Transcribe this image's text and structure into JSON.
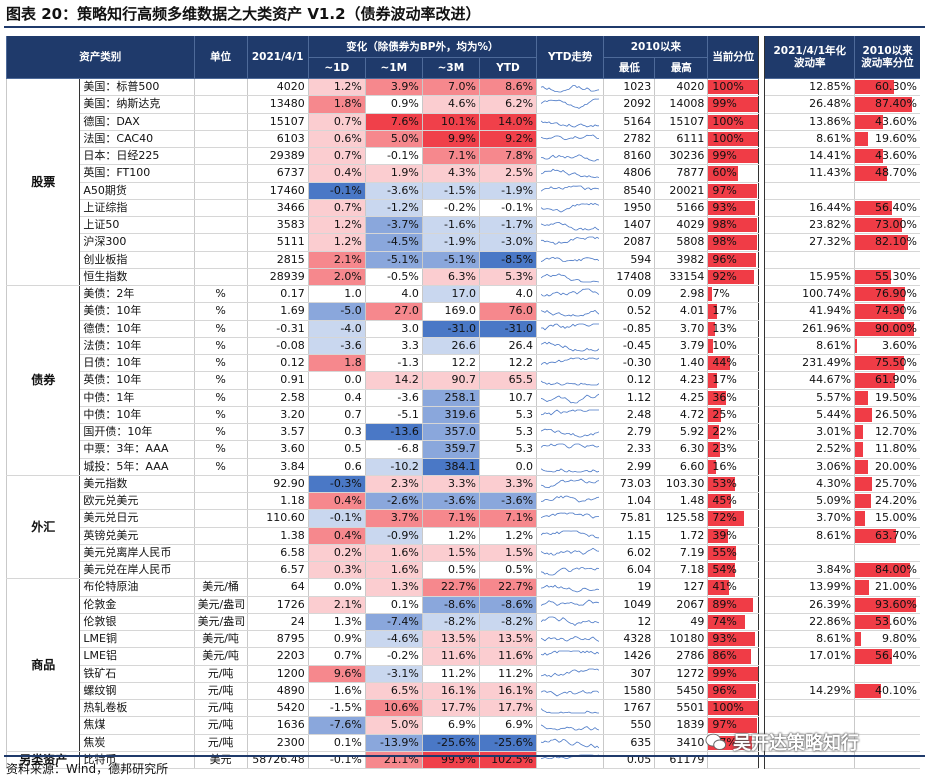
{
  "title": "图表 20：策略知行高频多维数据之大类资产 V1.2（债券波动率改进）",
  "footer": "资料来源：Wind，德邦研究所",
  "watermark": "吴开达策略知行",
  "colors": {
    "header_bg": "#1f3a6b",
    "red_strong": "#f0404a",
    "blue_strong": "#3f6fc0"
  },
  "header": {
    "asset_class": "资产类别",
    "unit": "单位",
    "date": "2021/4/1",
    "change_group": "变化（除债券为BP外，均为%）",
    "d1": "~1D",
    "m1": "~1M",
    "m3": "~3M",
    "ytd": "YTD",
    "trend": "YTD走势",
    "since2010": "2010以来",
    "low": "最低",
    "high": "最高",
    "percentile": "当前分位",
    "vol": "2021/4/1年化波动率",
    "vol_pct": "2010以来波动率分位"
  },
  "groups": [
    {
      "name": "股票",
      "rows": [
        {
          "name": "美国：标普500",
          "unit": "",
          "v": "4020",
          "d1": "1.2%",
          "m1": "3.9%",
          "m3": "7.0%",
          "ytd": "8.6%",
          "low": "1023",
          "high": "4020",
          "pct": "100%",
          "vol": "12.85%",
          "vp": "60.30%",
          "c": [
            1,
            2,
            2,
            2
          ],
          "p": 100,
          "vpn": 60.3
        },
        {
          "name": "美国：纳斯达克",
          "unit": "",
          "v": "13480",
          "d1": "1.8%",
          "m1": "0.9%",
          "m3": "4.6%",
          "ytd": "6.2%",
          "low": "2092",
          "high": "14008",
          "pct": "99%",
          "vol": "26.48%",
          "vp": "87.40%",
          "c": [
            2,
            0,
            1,
            1
          ],
          "p": 99,
          "vpn": 87.4
        },
        {
          "name": "德国：DAX",
          "unit": "",
          "v": "15107",
          "d1": "0.7%",
          "m1": "7.6%",
          "m3": "10.1%",
          "ytd": "14.0%",
          "low": "5164",
          "high": "15107",
          "pct": "100%",
          "vol": "13.86%",
          "vp": "43.60%",
          "c": [
            1,
            3,
            3,
            3
          ],
          "p": 100,
          "vpn": 43.6
        },
        {
          "name": "法国：CAC40",
          "unit": "",
          "v": "6103",
          "d1": "0.6%",
          "m1": "5.0%",
          "m3": "9.9%",
          "ytd": "9.2%",
          "low": "2782",
          "high": "6111",
          "pct": "100%",
          "vol": "8.61%",
          "vp": "19.60%",
          "c": [
            1,
            2,
            3,
            3
          ],
          "p": 100,
          "vpn": 19.6
        },
        {
          "name": "日本：日经225",
          "unit": "",
          "v": "29389",
          "d1": "0.7%",
          "m1": "-0.1%",
          "m3": "7.1%",
          "ytd": "7.8%",
          "low": "8160",
          "high": "30236",
          "pct": "99%",
          "vol": "14.41%",
          "vp": "43.60%",
          "c": [
            1,
            0,
            2,
            2
          ],
          "p": 99,
          "vpn": 43.6
        },
        {
          "name": "英国：FT100",
          "unit": "",
          "v": "6737",
          "d1": "0.4%",
          "m1": "1.9%",
          "m3": "4.3%",
          "ytd": "2.5%",
          "low": "4806",
          "high": "7877",
          "pct": "60%",
          "vol": "11.43%",
          "vp": "48.70%",
          "c": [
            1,
            1,
            1,
            1
          ],
          "p": 60,
          "vpn": 48.7
        },
        {
          "name": "A50期货",
          "unit": "",
          "v": "17460",
          "d1": "-0.1%",
          "m1": "-3.6%",
          "m3": "-1.5%",
          "ytd": "-1.9%",
          "low": "8540",
          "high": "20021",
          "pct": "97%",
          "vol": "",
          "vp": "",
          "c": [
            -3,
            -1,
            -1,
            -1
          ],
          "p": 97,
          "vpn": 0
        },
        {
          "name": "上证综指",
          "unit": "",
          "v": "3466",
          "d1": "0.7%",
          "m1": "-1.2%",
          "m3": "-0.2%",
          "ytd": "-0.1%",
          "low": "1950",
          "high": "5166",
          "pct": "93%",
          "vol": "16.44%",
          "vp": "56.40%",
          "c": [
            1,
            -1,
            0,
            0
          ],
          "p": 93,
          "vpn": 56.4
        },
        {
          "name": "上证50",
          "unit": "",
          "v": "3583",
          "d1": "1.2%",
          "m1": "-3.7%",
          "m3": "-1.6%",
          "ytd": "-1.7%",
          "low": "1407",
          "high": "4029",
          "pct": "98%",
          "vol": "23.82%",
          "vp": "73.00%",
          "c": [
            1,
            -2,
            -1,
            -1
          ],
          "p": 98,
          "vpn": 73.0
        },
        {
          "name": "沪深300",
          "unit": "",
          "v": "5111",
          "d1": "1.2%",
          "m1": "-4.5%",
          "m3": "-1.9%",
          "ytd": "-3.0%",
          "low": "2087",
          "high": "5808",
          "pct": "98%",
          "vol": "27.32%",
          "vp": "82.10%",
          "c": [
            1,
            -2,
            -1,
            -1
          ],
          "p": 98,
          "vpn": 82.1
        },
        {
          "name": "创业板指",
          "unit": "",
          "v": "2815",
          "d1": "2.1%",
          "m1": "-5.1%",
          "m3": "-5.1%",
          "ytd": "-8.5%",
          "low": "594",
          "high": "3982",
          "pct": "96%",
          "vol": "",
          "vp": "",
          "c": [
            2,
            -2,
            -2,
            -3
          ],
          "p": 96,
          "vpn": 0
        },
        {
          "name": "恒生指数",
          "unit": "",
          "v": "28939",
          "d1": "2.0%",
          "m1": "-0.5%",
          "m3": "6.3%",
          "ytd": "5.3%",
          "low": "17408",
          "high": "33154",
          "pct": "92%",
          "vol": "15.95%",
          "vp": "55.30%",
          "c": [
            2,
            0,
            1,
            1
          ],
          "p": 92,
          "vpn": 55.3
        }
      ]
    },
    {
      "name": "债券",
      "rows": [
        {
          "name": "美债：2年",
          "unit": "%",
          "v": "0.17",
          "d1": "1.0",
          "m1": "4.0",
          "m3": "17.0",
          "ytd": "4.0",
          "low": "0.09",
          "high": "2.98",
          "pct": "7%",
          "vol": "100.74%",
          "vp": "76.90%",
          "c": [
            0,
            0,
            -1,
            0
          ],
          "p": 7,
          "vpn": 76.9
        },
        {
          "name": "美债：10年",
          "unit": "%",
          "v": "1.69",
          "d1": "-5.0",
          "m1": "27.0",
          "m3": "169.0",
          "ytd": "76.0",
          "low": "0.52",
          "high": "4.01",
          "pct": "17%",
          "vol": "41.94%",
          "vp": "74.90%",
          "c": [
            -2,
            2,
            0,
            2
          ],
          "p": 17,
          "vpn": 74.9
        },
        {
          "name": "德债：10年",
          "unit": "%",
          "v": "-0.31",
          "d1": "-4.0",
          "m1": "3.0",
          "m3": "-31.0",
          "ytd": "-31.0",
          "low": "-0.85",
          "high": "3.70",
          "pct": "13%",
          "vol": "261.96%",
          "vp": "90.00%",
          "c": [
            -1,
            0,
            -3,
            -3
          ],
          "p": 13,
          "vpn": 90.0
        },
        {
          "name": "法债：10年",
          "unit": "%",
          "v": "-0.08",
          "d1": "-3.6",
          "m1": "3.3",
          "m3": "26.6",
          "ytd": "26.4",
          "low": "-0.45",
          "high": "3.79",
          "pct": "10%",
          "vol": "8.61%",
          "vp": "3.60%",
          "c": [
            -1,
            0,
            -1,
            0
          ],
          "p": 10,
          "vpn": 3.6
        },
        {
          "name": "日债：10年",
          "unit": "%",
          "v": "0.12",
          "d1": "1.8",
          "m1": "-1.3",
          "m3": "12.2",
          "ytd": "12.2",
          "low": "-0.30",
          "high": "1.40",
          "pct": "44%",
          "vol": "231.49%",
          "vp": "75.50%",
          "c": [
            2,
            0,
            0,
            0
          ],
          "p": 44,
          "vpn": 75.5
        },
        {
          "name": "英债：10年",
          "unit": "%",
          "v": "0.91",
          "d1": "0.0",
          "m1": "14.2",
          "m3": "90.7",
          "ytd": "65.5",
          "low": "0.12",
          "high": "4.23",
          "pct": "17%",
          "vol": "44.67%",
          "vp": "61.90%",
          "c": [
            0,
            1,
            1,
            1
          ],
          "p": 17,
          "vpn": 61.9
        },
        {
          "name": "中债：1年",
          "unit": "%",
          "v": "2.58",
          "d1": "0.4",
          "m1": "-3.6",
          "m3": "258.1",
          "ytd": "10.7",
          "low": "1.12",
          "high": "4.25",
          "pct": "36%",
          "vol": "5.57%",
          "vp": "19.50%",
          "c": [
            0,
            0,
            -2,
            0
          ],
          "p": 36,
          "vpn": 19.5
        },
        {
          "name": "中债：10年",
          "unit": "%",
          "v": "3.20",
          "d1": "0.7",
          "m1": "-5.1",
          "m3": "319.6",
          "ytd": "5.3",
          "low": "2.48",
          "high": "4.72",
          "pct": "25%",
          "vol": "5.44%",
          "vp": "26.50%",
          "c": [
            0,
            0,
            -2,
            0
          ],
          "p": 25,
          "vpn": 26.5
        },
        {
          "name": "国开债：10年",
          "unit": "%",
          "v": "3.57",
          "d1": "0.3",
          "m1": "-13.6",
          "m3": "357.0",
          "ytd": "5.3",
          "low": "2.79",
          "high": "5.92",
          "pct": "22%",
          "vol": "3.01%",
          "vp": "12.70%",
          "c": [
            0,
            -3,
            -2,
            0
          ],
          "p": 22,
          "vpn": 12.7
        },
        {
          "name": "中票：3年：AAA",
          "unit": "%",
          "v": "3.60",
          "d1": "0.5",
          "m1": "-6.8",
          "m3": "359.7",
          "ytd": "5.3",
          "low": "2.33",
          "high": "6.30",
          "pct": "23%",
          "vol": "2.52%",
          "vp": "11.80%",
          "c": [
            0,
            0,
            -2,
            0
          ],
          "p": 23,
          "vpn": 11.8
        },
        {
          "name": "城投：5年：AAA",
          "unit": "%",
          "v": "3.84",
          "d1": "0.6",
          "m1": "-10.2",
          "m3": "384.1",
          "ytd": "0.0",
          "low": "2.99",
          "high": "6.60",
          "pct": "16%",
          "vol": "3.06%",
          "vp": "20.00%",
          "c": [
            0,
            -1,
            -3,
            0
          ],
          "p": 16,
          "vpn": 20.0
        }
      ]
    },
    {
      "name": "外汇",
      "rows": [
        {
          "name": "美元指数",
          "unit": "",
          "v": "92.90",
          "d1": "-0.3%",
          "m1": "2.3%",
          "m3": "3.3%",
          "ytd": "3.3%",
          "low": "73.03",
          "high": "103.30",
          "pct": "53%",
          "vol": "4.30%",
          "vp": "25.70%",
          "c": [
            -3,
            1,
            1,
            1
          ],
          "p": 53,
          "vpn": 25.7
        },
        {
          "name": "欧元兑美元",
          "unit": "",
          "v": "1.18",
          "d1": "0.4%",
          "m1": "-2.6%",
          "m3": "-3.6%",
          "ytd": "-3.6%",
          "low": "1.04",
          "high": "1.48",
          "pct": "45%",
          "vol": "5.09%",
          "vp": "24.20%",
          "c": [
            2,
            -2,
            -2,
            -2
          ],
          "p": 45,
          "vpn": 24.2
        },
        {
          "name": "美元兑日元",
          "unit": "",
          "v": "110.60",
          "d1": "-0.1%",
          "m1": "3.7%",
          "m3": "7.1%",
          "ytd": "7.1%",
          "low": "75.81",
          "high": "125.58",
          "pct": "72%",
          "vol": "3.70%",
          "vp": "15.00%",
          "c": [
            -1,
            2,
            2,
            2
          ],
          "p": 72,
          "vpn": 15.0
        },
        {
          "name": "英镑兑美元",
          "unit": "",
          "v": "1.38",
          "d1": "0.4%",
          "m1": "-0.9%",
          "m3": "1.2%",
          "ytd": "1.2%",
          "low": "1.15",
          "high": "1.72",
          "pct": "39%",
          "vol": "8.61%",
          "vp": "63.70%",
          "c": [
            2,
            -1,
            0,
            0
          ],
          "p": 39,
          "vpn": 63.7
        },
        {
          "name": "美元兑离岸人民币",
          "unit": "",
          "v": "6.58",
          "d1": "0.2%",
          "m1": "1.6%",
          "m3": "1.5%",
          "ytd": "1.5%",
          "low": "6.02",
          "high": "7.19",
          "pct": "55%",
          "vol": "",
          "vp": "",
          "c": [
            1,
            1,
            1,
            1
          ],
          "p": 55,
          "vpn": 0
        },
        {
          "name": "美元兑在岸人民币",
          "unit": "",
          "v": "6.57",
          "d1": "0.3%",
          "m1": "1.6%",
          "m3": "0.5%",
          "ytd": "0.5%",
          "low": "6.04",
          "high": "7.18",
          "pct": "54%",
          "vol": "3.84%",
          "vp": "84.00%",
          "c": [
            1,
            1,
            0,
            0
          ],
          "p": 54,
          "vpn": 84.0
        }
      ]
    },
    {
      "name": "商品",
      "rows": [
        {
          "name": "布伦特原油",
          "unit": "美元/桶",
          "v": "64",
          "d1": "0.0%",
          "m1": "1.3%",
          "m3": "22.7%",
          "ytd": "22.7%",
          "low": "19",
          "high": "127",
          "pct": "41%",
          "vol": "13.99%",
          "vp": "21.00%",
          "c": [
            0,
            1,
            2,
            2
          ],
          "p": 41,
          "vpn": 21.0
        },
        {
          "name": "伦敦金",
          "unit": "美元/盎司",
          "v": "1726",
          "d1": "2.1%",
          "m1": "0.1%",
          "m3": "-8.6%",
          "ytd": "-8.6%",
          "low": "1049",
          "high": "2067",
          "pct": "89%",
          "vol": "26.39%",
          "vp": "93.60%",
          "c": [
            1,
            0,
            -2,
            -2
          ],
          "p": 89,
          "vpn": 93.6
        },
        {
          "name": "伦敦银",
          "unit": "美元/盎司",
          "v": "24",
          "d1": "1.3%",
          "m1": "-7.4%",
          "m3": "-8.2%",
          "ytd": "-8.2%",
          "low": "12",
          "high": "49",
          "pct": "74%",
          "vol": "22.86%",
          "vp": "53.60%",
          "c": [
            0,
            -2,
            -1,
            -1
          ],
          "p": 74,
          "vpn": 53.6
        },
        {
          "name": "LME铜",
          "unit": "美元/吨",
          "v": "8795",
          "d1": "0.9%",
          "m1": "-4.6%",
          "m3": "13.5%",
          "ytd": "13.5%",
          "low": "4328",
          "high": "10180",
          "pct": "93%",
          "vol": "8.61%",
          "vp": "9.80%",
          "c": [
            0,
            -1,
            1,
            1
          ],
          "p": 93,
          "vpn": 9.8
        },
        {
          "name": "LME铝",
          "unit": "美元/吨",
          "v": "2203",
          "d1": "0.7%",
          "m1": "-0.2%",
          "m3": "11.6%",
          "ytd": "11.6%",
          "low": "1426",
          "high": "2786",
          "pct": "86%",
          "vol": "17.01%",
          "vp": "56.40%",
          "c": [
            0,
            0,
            1,
            1
          ],
          "p": 86,
          "vpn": 56.4
        },
        {
          "name": "铁矿石",
          "unit": "元/吨",
          "v": "1200",
          "d1": "9.6%",
          "m1": "-3.1%",
          "m3": "11.2%",
          "ytd": "11.2%",
          "low": "307",
          "high": "1272",
          "pct": "99%",
          "vol": "",
          "vp": "",
          "c": [
            2,
            -1,
            0,
            0
          ],
          "p": 99,
          "vpn": 0
        },
        {
          "name": "螺纹钢",
          "unit": "元/吨",
          "v": "4890",
          "d1": "1.6%",
          "m1": "6.5%",
          "m3": "16.1%",
          "ytd": "16.1%",
          "low": "1580",
          "high": "5450",
          "pct": "96%",
          "vol": "14.29%",
          "vp": "40.10%",
          "c": [
            0,
            1,
            1,
            1
          ],
          "p": 96,
          "vpn": 40.1
        },
        {
          "name": "热轧卷板",
          "unit": "元/吨",
          "v": "5420",
          "d1": "-1.5%",
          "m1": "10.6%",
          "m3": "17.7%",
          "ytd": "17.7%",
          "low": "1767",
          "high": "5501",
          "pct": "100%",
          "vol": "",
          "vp": "",
          "c": [
            0,
            2,
            1,
            1
          ],
          "p": 100,
          "vpn": 0
        },
        {
          "name": "焦煤",
          "unit": "元/吨",
          "v": "1636",
          "d1": "-7.6%",
          "m1": "5.0%",
          "m3": "6.9%",
          "ytd": "6.9%",
          "low": "550",
          "high": "1839",
          "pct": "97%",
          "vol": "",
          "vp": "",
          "c": [
            -2,
            1,
            0,
            0
          ],
          "p": 97,
          "vpn": 0
        },
        {
          "name": "焦炭",
          "unit": "元/吨",
          "v": "2300",
          "d1": "0.1%",
          "m1": "-13.9%",
          "m3": "-25.6%",
          "ytd": "-25.6%",
          "low": "635",
          "high": "3410",
          "pct": "87%",
          "vol": "",
          "vp": "",
          "c": [
            0,
            -2,
            -3,
            -3
          ],
          "p": 87,
          "vpn": 0
        }
      ]
    },
    {
      "name": "另类资产",
      "rows": [
        {
          "name": "比特币",
          "unit": "美元",
          "v": "58726.48",
          "d1": "-0.1%",
          "m1": "21.1%",
          "m3": "99.9%",
          "ytd": "102.5%",
          "low": "0.05",
          "high": "61179",
          "pct": "",
          "vol": "",
          "vp": "",
          "c": [
            0,
            2,
            3,
            3
          ],
          "p": 0,
          "vpn": 0
        }
      ]
    }
  ]
}
